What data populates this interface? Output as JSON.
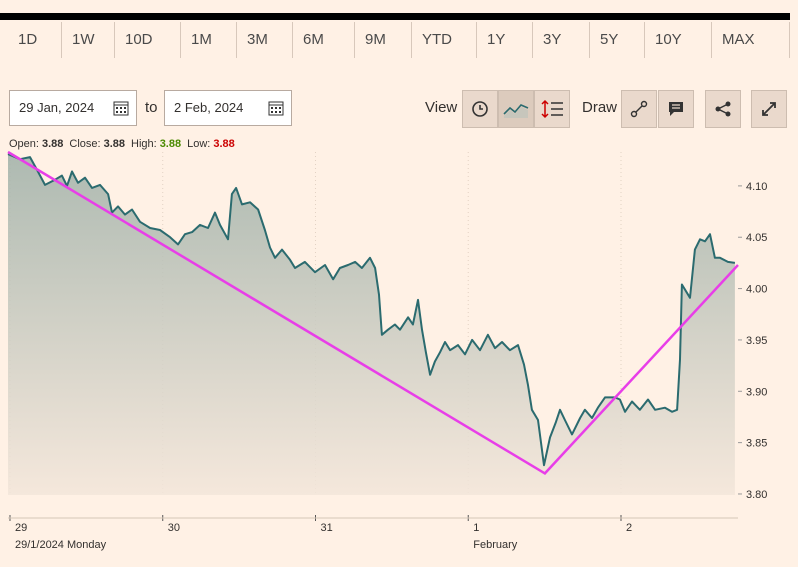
{
  "toolbar": {
    "ranges": [
      "1D",
      "1W",
      "10D",
      "1M",
      "3M",
      "6M",
      "9M",
      "YTD",
      "1Y",
      "3Y",
      "5Y",
      "10Y",
      "MAX"
    ]
  },
  "date_range": {
    "from": "29 Jan, 2024",
    "separator": "to",
    "to": "2 Feb, 2024"
  },
  "controls": {
    "view": "View",
    "draw": "Draw"
  },
  "quote": [
    {
      "label": "Open:",
      "value": 3.88
    },
    {
      "label": "Close:",
      "value": 3.88
    },
    {
      "label": "High:",
      "value": 3.88,
      "color": "#4a8a00"
    },
    {
      "label": "Low:",
      "value": 3.88,
      "color": "#cc0000"
    }
  ],
  "chart_data": {
    "type": "line",
    "x": [
      -0.013,
      0.065,
      0.131,
      0.183,
      0.229,
      0.295,
      0.34,
      0.373,
      0.406,
      0.445,
      0.491,
      0.537,
      0.589,
      0.642,
      0.668,
      0.707,
      0.753,
      0.799,
      0.851,
      0.917,
      0.982,
      1.048,
      1.1,
      1.146,
      1.192,
      1.244,
      1.296,
      1.342,
      1.375,
      1.427,
      1.453,
      1.48,
      1.519,
      1.571,
      1.624,
      1.669,
      1.702,
      1.735,
      1.781,
      1.833,
      1.866,
      1.931,
      1.997,
      2.062,
      2.115,
      2.16,
      2.213,
      2.259,
      2.304,
      2.357,
      2.39,
      2.416,
      2.435,
      2.475,
      2.52,
      2.553,
      2.606,
      2.638,
      2.671,
      2.697,
      2.723,
      2.75,
      2.782,
      2.815,
      2.848,
      2.881,
      2.933,
      2.979,
      3.025,
      3.077,
      3.129,
      3.175,
      3.221,
      3.273,
      3.326,
      3.365,
      3.391,
      3.417,
      3.457,
      3.496,
      3.535,
      3.574,
      3.601,
      3.633,
      3.679,
      3.732,
      3.764,
      3.81,
      3.849,
      3.895,
      3.961,
      3.993,
      4.026,
      4.072,
      4.124,
      4.177,
      4.223,
      4.288,
      4.334,
      4.367,
      4.386,
      4.399,
      4.452,
      4.484,
      4.517,
      4.55,
      4.583,
      4.615,
      4.648,
      4.7,
      4.746
    ],
    "series": [
      {
        "color": "#2b6b6f",
        "values": [
          4.131,
          4.126,
          4.128,
          4.114,
          4.101,
          4.106,
          4.11,
          4.1,
          4.114,
          4.103,
          4.108,
          4.098,
          4.101,
          4.092,
          4.074,
          4.08,
          4.072,
          4.077,
          4.065,
          4.059,
          4.057,
          4.05,
          4.043,
          4.053,
          4.055,
          4.062,
          4.059,
          4.074,
          4.062,
          4.048,
          4.092,
          4.098,
          4.082,
          4.084,
          4.077,
          4.057,
          4.04,
          4.03,
          4.038,
          4.028,
          4.02,
          4.026,
          4.016,
          4.023,
          4.009,
          4.02,
          4.023,
          4.026,
          4.02,
          4.03,
          4.02,
          3.994,
          3.955,
          3.96,
          3.965,
          3.96,
          3.972,
          3.965,
          3.989,
          3.96,
          3.938,
          3.916,
          3.929,
          3.938,
          3.948,
          3.94,
          3.945,
          3.936,
          3.95,
          3.94,
          3.955,
          3.942,
          3.948,
          3.94,
          3.945,
          3.926,
          3.906,
          3.882,
          3.872,
          3.828,
          3.855,
          3.87,
          3.882,
          3.872,
          3.858,
          3.874,
          3.882,
          3.874,
          3.884,
          3.894,
          3.894,
          3.892,
          3.88,
          3.89,
          3.882,
          3.892,
          3.882,
          3.884,
          3.88,
          3.882,
          3.931,
          4.004,
          3.991,
          4.038,
          4.048,
          4.046,
          4.053,
          4.03,
          4.03,
          4.026,
          4.025
        ]
      }
    ],
    "drawings": [
      {
        "color": "#e83ee8",
        "x": [
          -0.013,
          3.502,
          4.766
        ],
        "y": [
          4.133,
          3.82,
          4.023
        ]
      }
    ],
    "xlim": [
      -0.013,
      4.766
    ],
    "ylim": [
      3.799,
      4.133
    ],
    "xticks": [
      {
        "value": 0,
        "label": "29"
      },
      {
        "value": 1,
        "label": "30"
      },
      {
        "value": 2,
        "label": "31"
      },
      {
        "value": 3,
        "label": "1"
      },
      {
        "value": 4,
        "label": "2"
      }
    ],
    "x_annotations": [
      {
        "value": 0,
        "label": "29/1/2024 Monday"
      },
      {
        "value": 3,
        "label": "February"
      }
    ],
    "yticks": [
      {
        "value": 3.8,
        "label": "3.80"
      },
      {
        "value": 3.85,
        "label": "3.85"
      },
      {
        "value": 3.9,
        "label": "3.90"
      },
      {
        "value": 3.95,
        "label": "3.95"
      },
      {
        "value": 4,
        "label": "4.00"
      },
      {
        "value": 4.05,
        "label": "4.05"
      },
      {
        "value": 4.1,
        "label": "4.10"
      }
    ],
    "grid": true
  }
}
